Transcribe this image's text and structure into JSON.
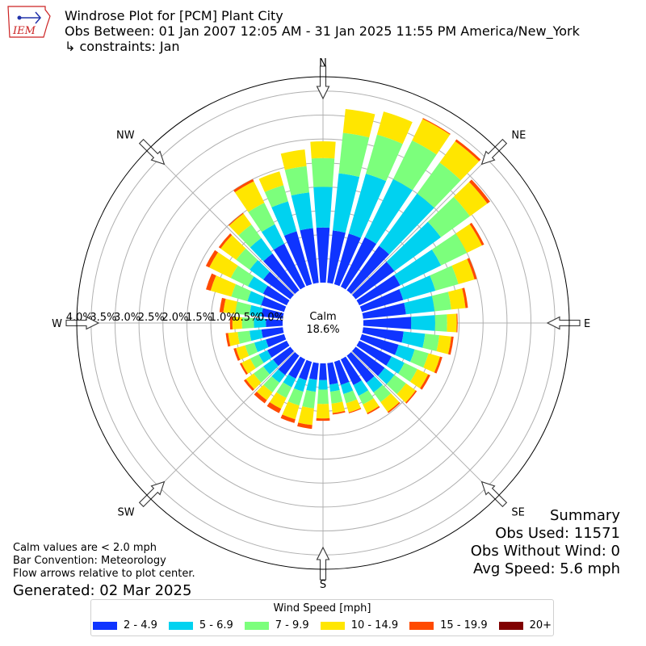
{
  "header": {
    "title": "Windrose Plot for [PCM] Plant City",
    "obs_between": "Obs Between: 01 Jan 2007 12:05 AM - 31 Jan 2025 11:55 PM America/New_York",
    "constraints": "↳ constraints: Jan"
  },
  "logo": {
    "text": "IEM"
  },
  "summary": {
    "heading": "Summary",
    "obs_used": "Obs Used: 11571",
    "obs_without_wind": "Obs Without Wind: 0",
    "avg_speed": "Avg Speed: 5.6 mph"
  },
  "notes": {
    "calm": "Calm values are < 2.0 mph",
    "bar_convention": "Bar Convention: Meteorology",
    "flow_arrows": "Flow arrows relative to plot center.",
    "generated": "Generated: 02 Mar 2025"
  },
  "center": {
    "label": "Calm",
    "value": "18.6%"
  },
  "colors": {
    "bins": [
      "#0f34ff",
      "#00d2f0",
      "#7cff7c",
      "#ffe600",
      "#ff4a00",
      "#800000"
    ],
    "grid": "#b0b0b0"
  },
  "chart_data": {
    "type": "windrose",
    "legend_title": "Wind Speed [mph]",
    "bin_labels": [
      "2 - 4.9",
      "5 - 6.9",
      "7 - 9.9",
      "10 - 14.9",
      "15 - 19.9",
      "20+"
    ],
    "cardinal_labels": [
      "N",
      "NE",
      "E",
      "SE",
      "S",
      "SW",
      "W",
      "NW"
    ],
    "radial_ticks": [
      0.0,
      0.5,
      1.0,
      1.5,
      2.0,
      2.5,
      3.0,
      3.5,
      4.0
    ],
    "radial_tick_labels": [
      "0.0%",
      "0.5%",
      "1.0%",
      "1.5%",
      "2.0%",
      "2.5%",
      "3.0%",
      "3.5%",
      "4.0%"
    ],
    "radial_unit": "%",
    "radial_max": 4.3,
    "calm_percent": 18.6,
    "direction_step_deg": 10,
    "directions_deg": [
      0,
      10,
      20,
      30,
      40,
      50,
      60,
      70,
      80,
      90,
      100,
      110,
      120,
      130,
      140,
      150,
      160,
      170,
      180,
      190,
      200,
      210,
      220,
      230,
      240,
      250,
      260,
      270,
      280,
      290,
      300,
      310,
      320,
      330,
      340,
      350
    ],
    "cumulative_percent": [
      [
        1.15,
        2.0,
        2.6,
        2.95,
        2.95,
        2.95
      ],
      [
        1.1,
        2.3,
        3.15,
        3.65,
        3.65,
        3.65
      ],
      [
        1.1,
        2.4,
        3.25,
        3.75,
        3.75,
        3.75
      ],
      [
        1.15,
        2.5,
        3.4,
        3.9,
        3.92,
        3.92
      ],
      [
        1.15,
        2.5,
        3.3,
        3.85,
        3.9,
        3.9
      ],
      [
        1.0,
        2.2,
        2.95,
        3.4,
        3.47,
        3.47
      ],
      [
        0.95,
        1.9,
        2.5,
        2.85,
        2.9,
        2.9
      ],
      [
        0.9,
        1.6,
        2.1,
        2.45,
        2.5,
        2.5
      ],
      [
        0.9,
        1.5,
        1.85,
        2.15,
        2.2,
        2.2
      ],
      [
        1.0,
        1.5,
        1.75,
        1.95,
        1.97,
        1.97
      ],
      [
        0.85,
        1.3,
        1.6,
        1.85,
        1.9,
        1.9
      ],
      [
        0.8,
        1.15,
        1.45,
        1.7,
        1.75,
        1.75
      ],
      [
        0.75,
        1.05,
        1.35,
        1.6,
        1.65,
        1.65
      ],
      [
        0.75,
        1.0,
        1.3,
        1.55,
        1.58,
        1.58
      ],
      [
        0.7,
        0.95,
        1.2,
        1.45,
        1.48,
        1.48
      ],
      [
        0.6,
        0.85,
        1.05,
        1.25,
        1.28,
        1.28
      ],
      [
        0.5,
        0.7,
        0.9,
        1.1,
        1.12,
        1.12
      ],
      [
        0.45,
        0.6,
        0.85,
        1.05,
        1.08,
        1.08
      ],
      [
        0.35,
        0.55,
        0.85,
        1.15,
        1.2,
        1.2
      ],
      [
        0.35,
        0.6,
        0.95,
        1.3,
        1.38,
        1.38
      ],
      [
        0.4,
        0.65,
        0.95,
        1.25,
        1.33,
        1.33
      ],
      [
        0.45,
        0.65,
        0.9,
        1.15,
        1.25,
        1.25
      ],
      [
        0.5,
        0.7,
        0.95,
        1.15,
        1.23,
        1.23
      ],
      [
        0.45,
        0.7,
        0.95,
        1.15,
        1.2,
        1.2
      ],
      [
        0.45,
        0.65,
        0.85,
        1.05,
        1.09,
        1.09
      ],
      [
        0.4,
        0.65,
        0.85,
        1.05,
        1.1,
        1.1
      ],
      [
        0.45,
        0.7,
        0.95,
        1.15,
        1.2,
        1.2
      ],
      [
        0.35,
        0.6,
        0.85,
        1.05,
        1.1,
        1.1
      ],
      [
        0.45,
        0.7,
        1.0,
        1.25,
        1.33,
        1.33
      ],
      [
        0.5,
        0.8,
        1.15,
        1.6,
        1.7,
        1.7
      ],
      [
        0.55,
        0.9,
        1.3,
        1.8,
        1.88,
        1.88
      ],
      [
        0.7,
        1.05,
        1.4,
        1.8,
        1.85,
        1.85
      ],
      [
        0.95,
        1.35,
        1.7,
        1.98,
        2.0,
        2.0
      ],
      [
        1.0,
        1.45,
        1.95,
        2.45,
        2.5,
        2.5
      ],
      [
        1.15,
        1.8,
        2.15,
        2.45,
        2.45,
        2.45
      ],
      [
        1.15,
        1.9,
        2.45,
        2.8,
        2.8,
        2.8
      ]
    ]
  }
}
